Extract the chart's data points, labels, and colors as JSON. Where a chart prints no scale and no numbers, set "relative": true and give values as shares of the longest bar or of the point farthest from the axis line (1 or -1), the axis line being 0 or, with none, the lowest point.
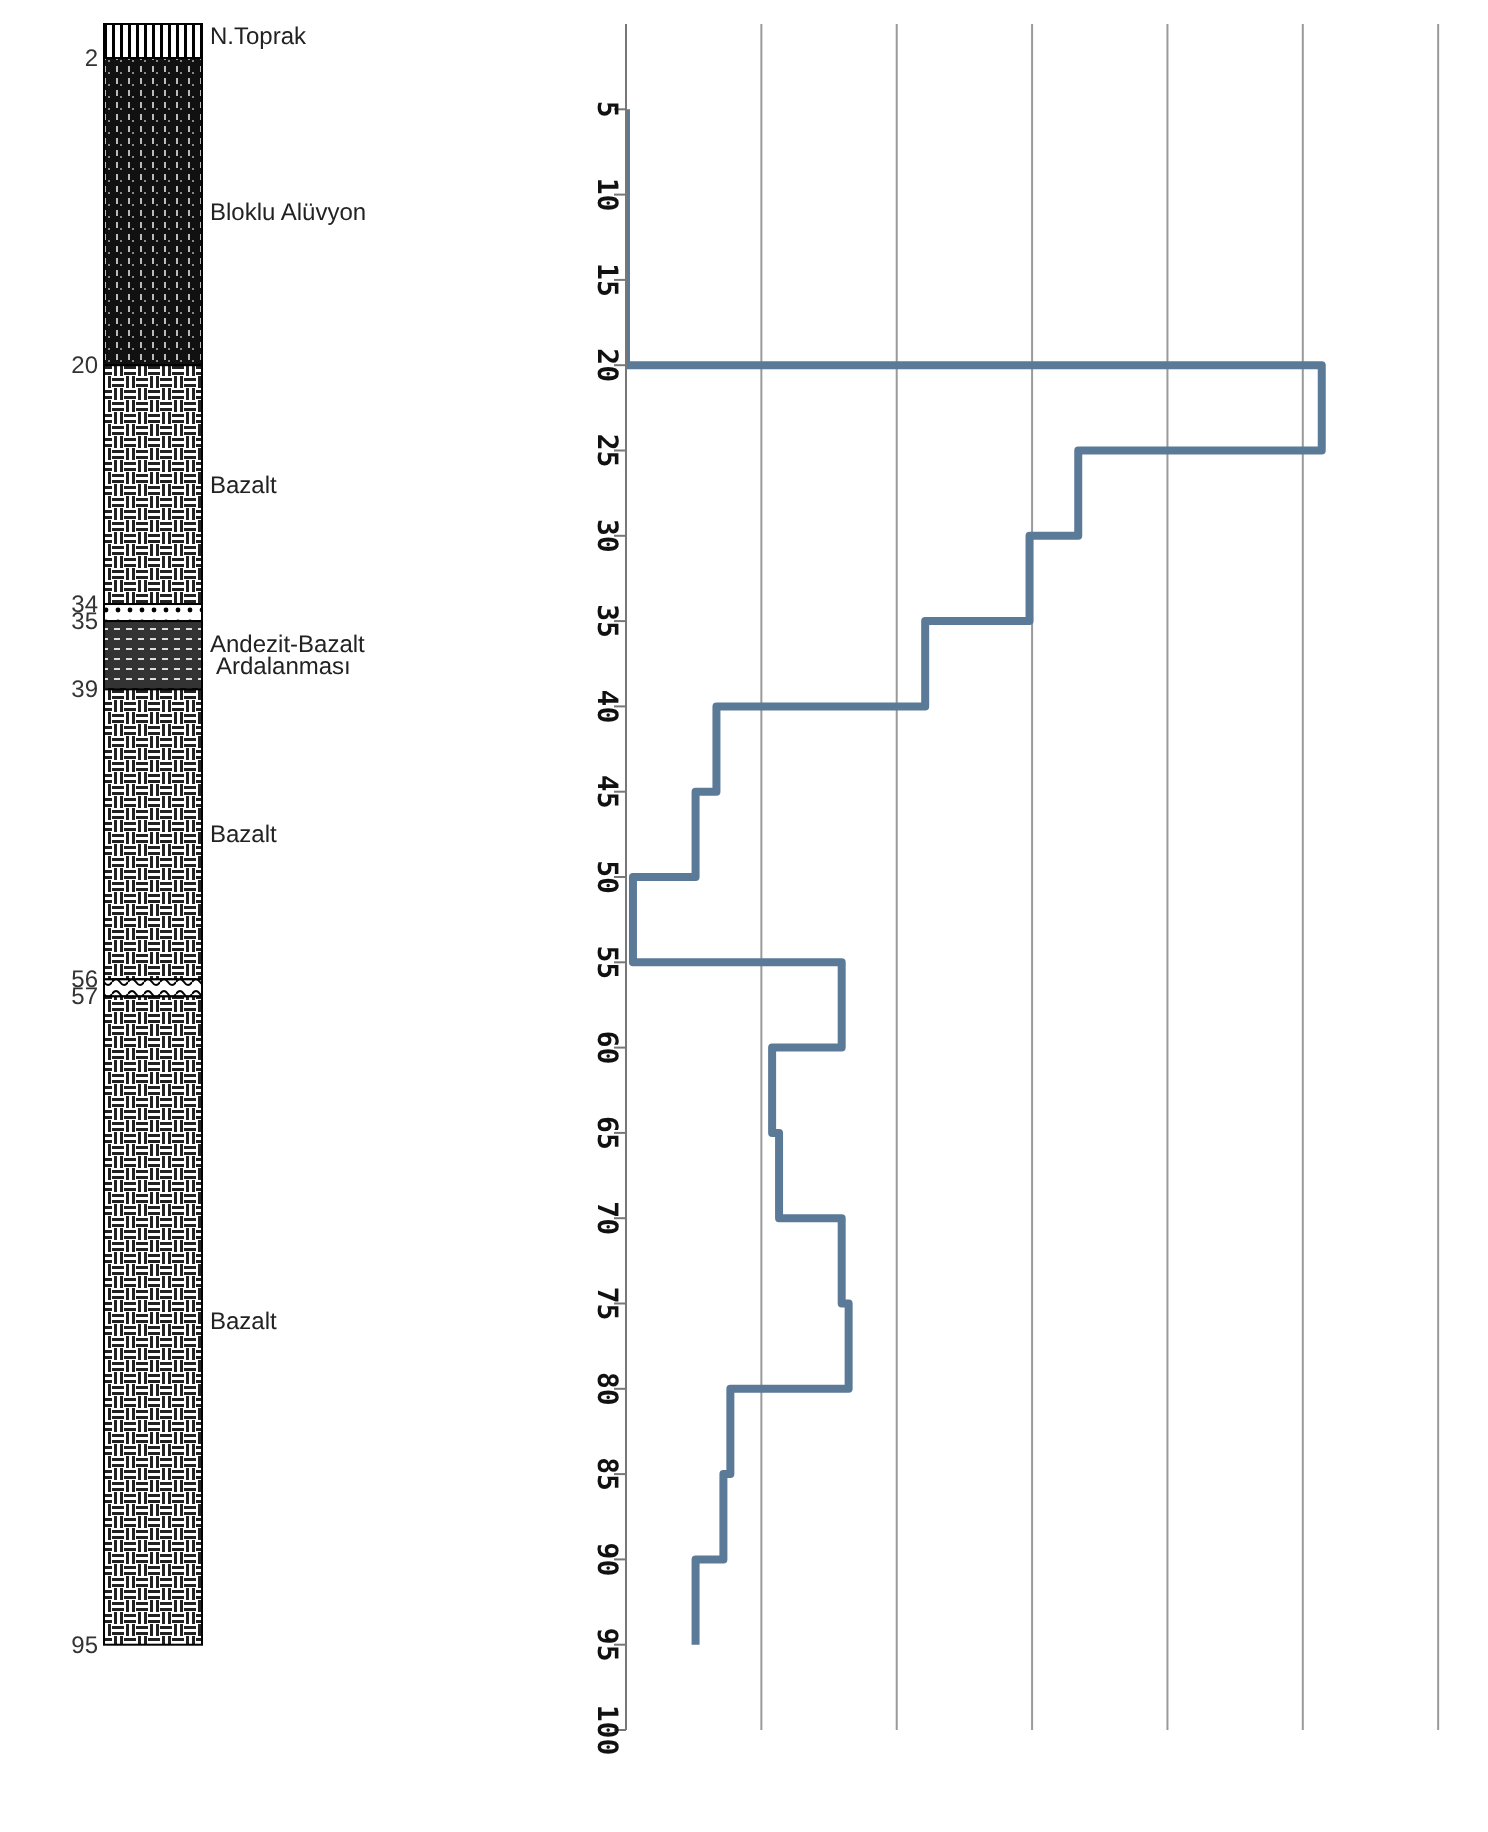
{
  "chart_data": {
    "type": "step",
    "orientation": "horizontal",
    "relative": true,
    "grid": "x",
    "x": [
      5,
      10,
      15,
      20,
      25,
      30,
      35,
      40,
      45,
      50,
      55,
      60,
      65,
      70,
      75,
      80,
      85,
      90,
      95
    ],
    "series": [
      {
        "color": "#5b7a97",
        "values": [
          0,
          0,
          0,
          1,
          0.65,
          0.58,
          0.43,
          0.13,
          0.1,
          0.01,
          0.31,
          0.21,
          0.22,
          0.31,
          0.32,
          0.15,
          0.14,
          0.1,
          0.1
        ]
      }
    ],
    "ylim": [
      100,
      0
    ],
    "yticks": [
      5,
      10,
      15,
      20,
      25,
      30,
      35,
      40,
      45,
      50,
      55,
      60,
      65,
      70,
      75,
      80,
      85,
      90,
      95,
      100
    ],
    "annotations": [
      "N.Toprak",
      "Bloklu Alüvyon",
      "Bazalt",
      "Andezit-Bazalt Ardalanması",
      "Bazalt",
      "Bazalt",
      "2",
      "20",
      "34",
      "35",
      "39",
      "56",
      "57",
      "95"
    ]
  }
}
